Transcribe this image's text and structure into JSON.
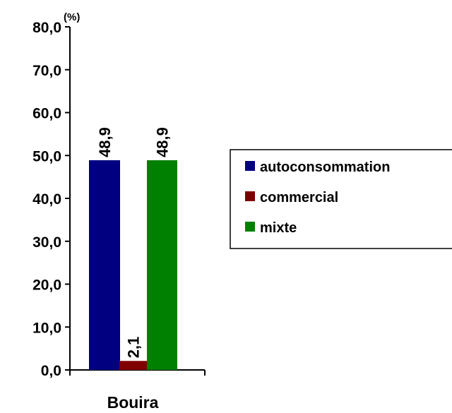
{
  "chart_data": {
    "type": "bar",
    "categories": [
      "Bouira"
    ],
    "series": [
      {
        "name": "autoconsommation",
        "values": [
          48.9
        ],
        "color": "#000080"
      },
      {
        "name": "commercial",
        "values": [
          2.1
        ],
        "color": "#800000"
      },
      {
        "name": "mixte",
        "values": [
          48.9
        ],
        "color": "#008000"
      }
    ],
    "data_labels": [
      "48,9",
      "2,1",
      "48,9"
    ],
    "ylim": [
      0,
      80
    ],
    "yticks": [
      "0,0",
      "10,0",
      "20,0",
      "30,0",
      "40,0",
      "50,0",
      "60,0",
      "70,0",
      "80,0"
    ],
    "yunit": "(%)",
    "grid": false,
    "legend_position": "right"
  }
}
